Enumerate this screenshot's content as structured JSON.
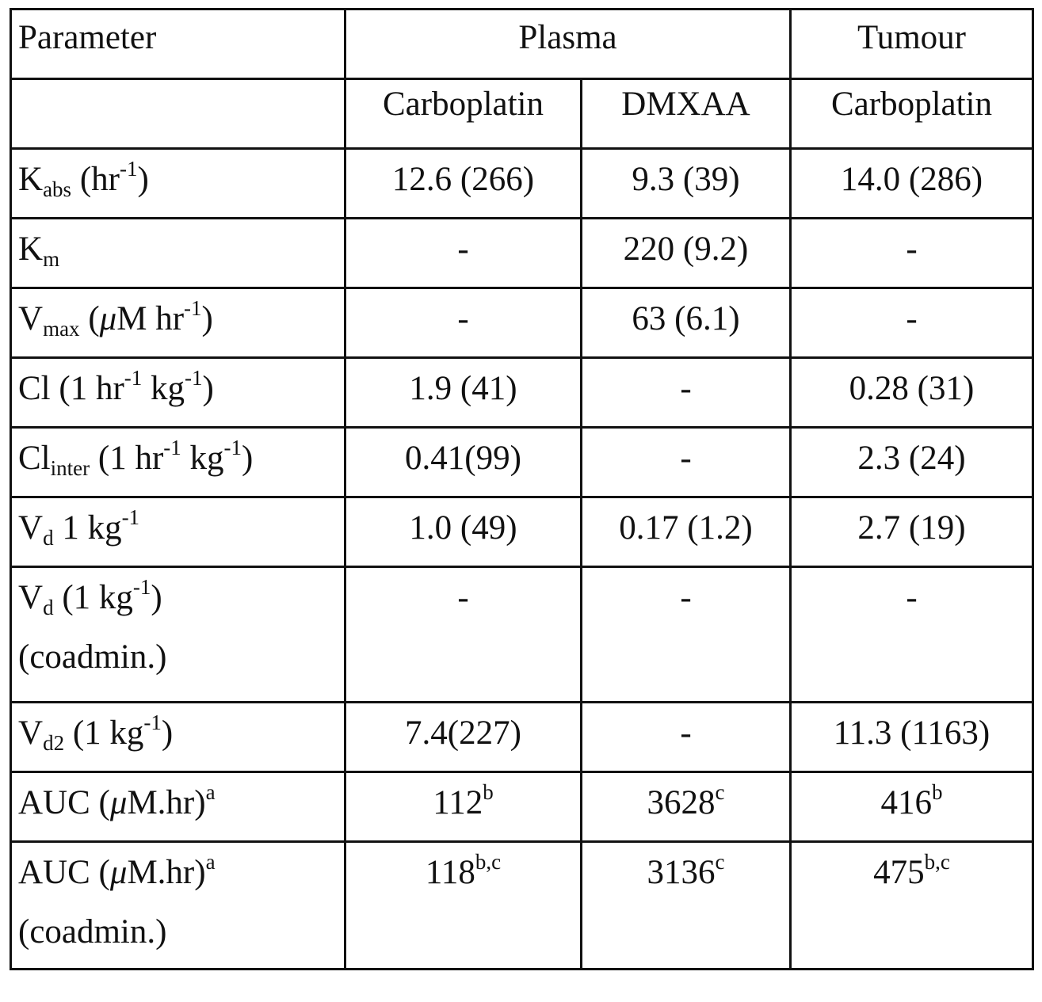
{
  "header": {
    "parameter": "Parameter",
    "plasma": "Plasma",
    "tumour": "Tumour",
    "sub": [
      "",
      "Carboplatin",
      "DMXAA",
      "Carboplatin"
    ]
  },
  "rows": [
    {
      "label": {
        "base": "K",
        "sub": "abs",
        "tail1": " (hr",
        "sup1": "-1",
        "tail2": ")"
      },
      "values": [
        "12.6 (266)",
        "9.3 (39)",
        "14.0 (286)"
      ]
    },
    {
      "label": {
        "base": "K",
        "sub": "m"
      },
      "values": [
        "-",
        "220 (9.2)",
        "-"
      ]
    },
    {
      "label": {
        "base": "V",
        "sub": "max",
        "pre": " (",
        "mu": "μ",
        "tail1": "M hr",
        "sup1": "-1",
        "tail2": ")"
      },
      "values": [
        "-",
        "63 (6.1)",
        "-"
      ]
    },
    {
      "label": {
        "base": "Cl (1 hr",
        "sup1": "-1",
        "tail1": " kg",
        "sup2": "-1",
        "tail2": ")"
      },
      "values": [
        "1.9 (41)",
        "-",
        "0.28 (31)"
      ]
    },
    {
      "label": {
        "base": "Cl",
        "sub": "inter",
        "tail1": " (1 hr",
        "sup1": "-1",
        "tail2": " kg",
        "sup2": "-1",
        "tail3": ")"
      },
      "values": [
        "0.41(99)",
        "-",
        "2.3 (24)"
      ]
    },
    {
      "label": {
        "base": "V",
        "sub": "d",
        "tail1": " 1 kg",
        "sup1": "-1"
      },
      "values": [
        "1.0 (49)",
        "0.17 (1.2)",
        "2.7 (19)"
      ]
    },
    {
      "label": {
        "base": "V",
        "sub": "d",
        "tail1": " (1 kg",
        "sup1": "-1",
        "tail2": ")",
        "line2": "(coadmin.)"
      },
      "values": [
        "-",
        "-",
        "-"
      ]
    },
    {
      "label": {
        "base": "V",
        "sub": "d2",
        "tail1": " (1 kg",
        "sup1": "-1",
        "tail2": ")"
      },
      "values": [
        "7.4(227)",
        "-",
        "11.3 (1163)"
      ]
    },
    {
      "label": {
        "base": "AUC (",
        "mu": "μ",
        "tail1": "M.hr)",
        "sup1": "a"
      },
      "values": [
        {
          "v": "112",
          "sup": "b"
        },
        {
          "v": "3628",
          "sup": "c"
        },
        {
          "v": "416",
          "sup": "b"
        }
      ]
    },
    {
      "label": {
        "base": "AUC (",
        "mu": "μ",
        "tail1": "M.hr)",
        "sup1": "a",
        "line2": "(coadmin.)"
      },
      "values": [
        {
          "v": "118",
          "sup": "b,c"
        },
        {
          "v": "3136",
          "sup": "c"
        },
        {
          "v": "475",
          "sup": "b,c"
        }
      ]
    }
  ]
}
